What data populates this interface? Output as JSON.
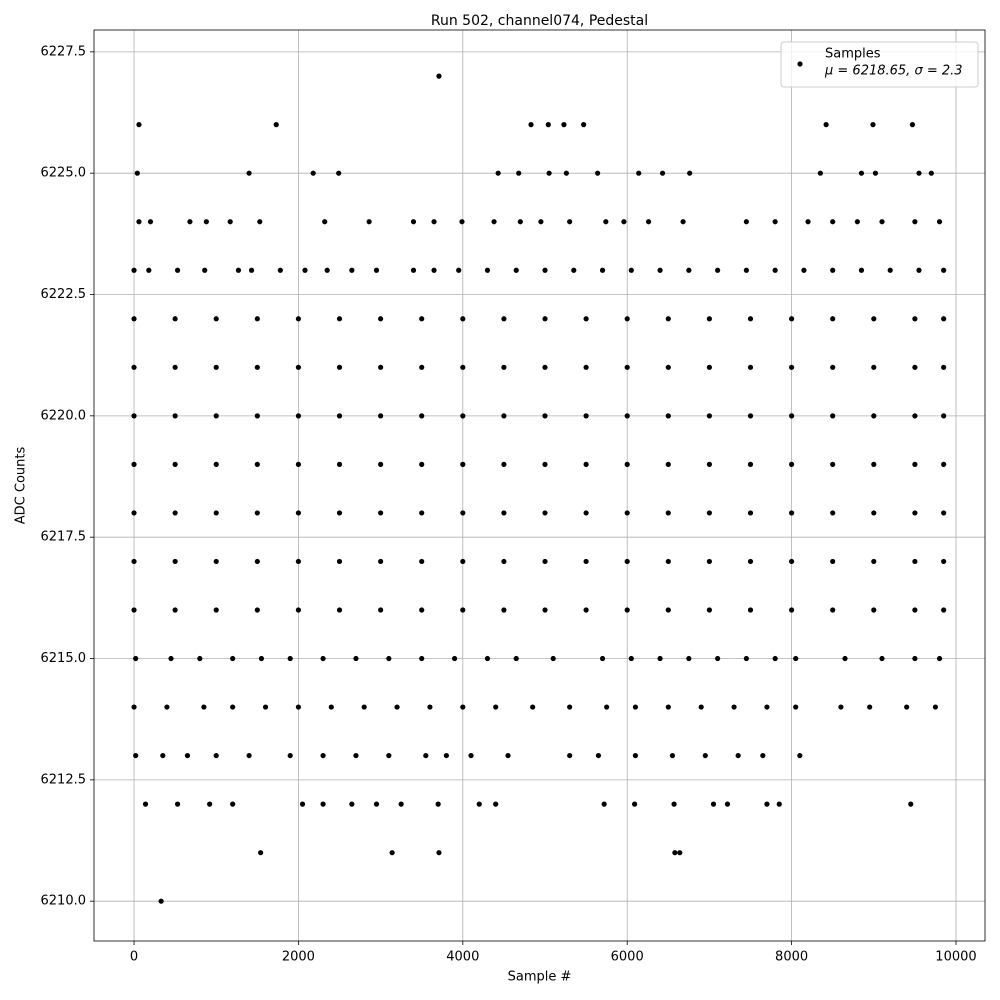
{
  "chart_data": {
    "type": "scatter",
    "title": "Run 502, channel074, Pedestal",
    "x_label": "Sample #",
    "y_label": "ADC Counts",
    "grid": true,
    "legend_loc": "upper right",
    "legend_note": "μ = 6218.65, σ = 2.3",
    "xlim": [
      -487,
      10353
    ],
    "ylim": [
      6209.18,
      6227.95
    ],
    "xticks": [
      0,
      2000,
      4000,
      6000,
      8000,
      10000
    ],
    "yticks": [
      {
        "value": 6210.0,
        "label": "6210.0"
      },
      {
        "value": 6212.5,
        "label": "6212.5"
      },
      {
        "value": 6215.0,
        "label": "6215.0"
      },
      {
        "value": 6217.5,
        "label": "6217.5"
      },
      {
        "value": 6220.0,
        "label": "6220.0"
      },
      {
        "value": 6222.5,
        "label": "6222.5"
      },
      {
        "value": 6225.0,
        "label": "6225.0"
      },
      {
        "value": 6227.5,
        "label": "6227.5"
      }
    ],
    "series": [
      {
        "name": "Samples",
        "color": "#000000",
        "x": [
          3710,
          60,
          1730,
          4830,
          5040,
          5230,
          5470,
          8420,
          8990,
          9470,
          40,
          1400,
          2180,
          2490,
          4430,
          4680,
          5050,
          5260,
          5640,
          6140,
          6430,
          6760,
          8350,
          8850,
          9020,
          9550,
          9700,
          60,
          200,
          680,
          880,
          1170,
          1530,
          2320,
          2860,
          3400,
          3650,
          3990,
          4380,
          4700,
          4950,
          5300,
          5740,
          5960,
          6260,
          6680,
          7450,
          7800,
          8200,
          8500,
          8800,
          9100,
          9500,
          9800,
          0,
          180,
          530,
          860,
          1270,
          1430,
          1780,
          2080,
          2350,
          2650,
          2950,
          3400,
          3650,
          3950,
          4300,
          4650,
          5000,
          5350,
          5700,
          6050,
          6400,
          6750,
          7100,
          7450,
          7800,
          8150,
          8500,
          8850,
          9200,
          9550,
          9850,
          0,
          500,
          1000,
          1500,
          2000,
          2500,
          3000,
          3500,
          4000,
          4500,
          5000,
          5500,
          6000,
          6500,
          7000,
          7500,
          8000,
          8500,
          9000,
          9500,
          9850,
          0,
          500,
          1000,
          1500,
          2000,
          2500,
          3000,
          3500,
          4000,
          4500,
          5000,
          5500,
          6000,
          6500,
          7000,
          7500,
          8000,
          8500,
          9000,
          9500,
          9850,
          0,
          500,
          1000,
          1500,
          2000,
          2500,
          3000,
          3500,
          4000,
          4500,
          5000,
          5500,
          6000,
          6500,
          7000,
          7500,
          8000,
          8500,
          9000,
          9500,
          9850,
          0,
          500,
          1000,
          1500,
          2000,
          2500,
          3000,
          3500,
          4000,
          4500,
          5000,
          5500,
          6000,
          6500,
          7000,
          7500,
          8000,
          8500,
          9000,
          9500,
          9850,
          0,
          500,
          1000,
          1500,
          2000,
          2500,
          3000,
          3500,
          4000,
          4500,
          5000,
          5500,
          6000,
          6500,
          7000,
          7500,
          8000,
          8500,
          9000,
          9500,
          9850,
          0,
          500,
          1000,
          1500,
          2000,
          2500,
          3000,
          3500,
          4000,
          4500,
          5000,
          5500,
          6000,
          6500,
          7000,
          7500,
          8000,
          8500,
          9000,
          9500,
          9850,
          0,
          500,
          1000,
          1500,
          2000,
          2500,
          3000,
          3500,
          4000,
          4500,
          5000,
          5500,
          6000,
          6500,
          7000,
          7500,
          8000,
          8500,
          9000,
          9500,
          9850,
          20,
          450,
          800,
          1200,
          1550,
          1900,
          2300,
          2700,
          3100,
          3500,
          3900,
          4300,
          4650,
          5100,
          5700,
          6050,
          6400,
          6750,
          7100,
          7450,
          7800,
          8050,
          8650,
          9100,
          9500,
          9800,
          0,
          400,
          850,
          1200,
          1600,
          2000,
          2400,
          2800,
          3200,
          3600,
          4000,
          4400,
          4850,
          5300,
          5750,
          6100,
          6500,
          6900,
          7300,
          7700,
          8050,
          8600,
          8950,
          9400,
          9750,
          20,
          350,
          650,
          1000,
          1400,
          1900,
          2300,
          2700,
          3100,
          3550,
          3800,
          4100,
          4550,
          5300,
          5650,
          6100,
          6550,
          6950,
          7350,
          7650,
          8100,
          140,
          530,
          920,
          1200,
          2050,
          2300,
          2650,
          2950,
          3250,
          3700,
          4200,
          4400,
          5720,
          6090,
          6570,
          7050,
          7220,
          7700,
          7850,
          9450,
          1540,
          3140,
          3710,
          6580,
          6640,
          330
        ],
        "values": [
          6227,
          6226,
          6226,
          6226,
          6226,
          6226,
          6226,
          6226,
          6226,
          6226,
          6225,
          6225,
          6225,
          6225,
          6225,
          6225,
          6225,
          6225,
          6225,
          6225,
          6225,
          6225,
          6225,
          6225,
          6225,
          6225,
          6225,
          6224,
          6224,
          6224,
          6224,
          6224,
          6224,
          6224,
          6224,
          6224,
          6224,
          6224,
          6224,
          6224,
          6224,
          6224,
          6224,
          6224,
          6224,
          6224,
          6224,
          6224,
          6224,
          6224,
          6224,
          6224,
          6224,
          6224,
          6223,
          6223,
          6223,
          6223,
          6223,
          6223,
          6223,
          6223,
          6223,
          6223,
          6223,
          6223,
          6223,
          6223,
          6223,
          6223,
          6223,
          6223,
          6223,
          6223,
          6223,
          6223,
          6223,
          6223,
          6223,
          6223,
          6223,
          6223,
          6223,
          6223,
          6223,
          6222,
          6222,
          6222,
          6222,
          6222,
          6222,
          6222,
          6222,
          6222,
          6222,
          6222,
          6222,
          6222,
          6222,
          6222,
          6222,
          6222,
          6222,
          6222,
          6222,
          6222,
          6221,
          6221,
          6221,
          6221,
          6221,
          6221,
          6221,
          6221,
          6221,
          6221,
          6221,
          6221,
          6221,
          6221,
          6221,
          6221,
          6221,
          6221,
          6221,
          6221,
          6221,
          6220,
          6220,
          6220,
          6220,
          6220,
          6220,
          6220,
          6220,
          6220,
          6220,
          6220,
          6220,
          6220,
          6220,
          6220,
          6220,
          6220,
          6220,
          6220,
          6220,
          6220,
          6219,
          6219,
          6219,
          6219,
          6219,
          6219,
          6219,
          6219,
          6219,
          6219,
          6219,
          6219,
          6219,
          6219,
          6219,
          6219,
          6219,
          6219,
          6219,
          6219,
          6219,
          6218,
          6218,
          6218,
          6218,
          6218,
          6218,
          6218,
          6218,
          6218,
          6218,
          6218,
          6218,
          6218,
          6218,
          6218,
          6218,
          6218,
          6218,
          6218,
          6218,
          6218,
          6217,
          6217,
          6217,
          6217,
          6217,
          6217,
          6217,
          6217,
          6217,
          6217,
          6217,
          6217,
          6217,
          6217,
          6217,
          6217,
          6217,
          6217,
          6217,
          6217,
          6217,
          6216,
          6216,
          6216,
          6216,
          6216,
          6216,
          6216,
          6216,
          6216,
          6216,
          6216,
          6216,
          6216,
          6216,
          6216,
          6216,
          6216,
          6216,
          6216,
          6216,
          6216,
          6215,
          6215,
          6215,
          6215,
          6215,
          6215,
          6215,
          6215,
          6215,
          6215,
          6215,
          6215,
          6215,
          6215,
          6215,
          6215,
          6215,
          6215,
          6215,
          6215,
          6215,
          6215,
          6215,
          6215,
          6215,
          6215,
          6214,
          6214,
          6214,
          6214,
          6214,
          6214,
          6214,
          6214,
          6214,
          6214,
          6214,
          6214,
          6214,
          6214,
          6214,
          6214,
          6214,
          6214,
          6214,
          6214,
          6214,
          6214,
          6214,
          6214,
          6214,
          6213,
          6213,
          6213,
          6213,
          6213,
          6213,
          6213,
          6213,
          6213,
          6213,
          6213,
          6213,
          6213,
          6213,
          6213,
          6213,
          6213,
          6213,
          6213,
          6213,
          6213,
          6212,
          6212,
          6212,
          6212,
          6212,
          6212,
          6212,
          6212,
          6212,
          6212,
          6212,
          6212,
          6212,
          6212,
          6212,
          6212,
          6212,
          6212,
          6212,
          6212,
          6211,
          6211,
          6211,
          6211,
          6211,
          6210
        ]
      }
    ]
  }
}
